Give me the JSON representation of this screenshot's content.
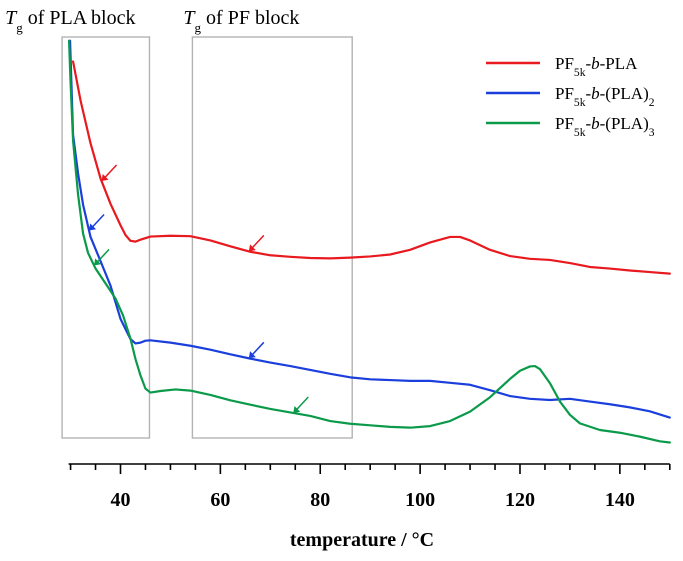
{
  "chart_data": {
    "type": "line",
    "title": "",
    "xlabel": "temperature / °C",
    "ylabel": "",
    "xlim": [
      29,
      150
    ],
    "xticks": [
      40,
      60,
      80,
      100,
      120,
      140
    ],
    "xtick_labels": [
      "40",
      "60",
      "80",
      "100",
      "120",
      "140"
    ],
    "grid": false,
    "legend_position": "top-right",
    "region_labels": [
      {
        "italic": "T",
        "sub": "g",
        "text": "of PLA block"
      },
      {
        "italic": "T",
        "sub": "g",
        "text": "of PF block"
      }
    ],
    "regions_x": [
      [
        28.3,
        45.8
      ],
      [
        54.4,
        86.4
      ]
    ],
    "series": [
      {
        "name_parts": [
          {
            "text": "PF"
          },
          {
            "text": "5k",
            "sub": true
          },
          {
            "text": "-"
          },
          {
            "text": "b",
            "italic": true
          },
          {
            "text": "-PLA"
          }
        ],
        "color": "#e8191f",
        "x": [
          30.5,
          32,
          34,
          36,
          38,
          40,
          41,
          42,
          43,
          44,
          46,
          50,
          54,
          58,
          62,
          66,
          70,
          74,
          78,
          82,
          86,
          90,
          94,
          98,
          102,
          106,
          108,
          110,
          114,
          118,
          122,
          126,
          130,
          134,
          138,
          142,
          146,
          150
        ],
        "y": [
          94.5,
          84.5,
          73.5,
          64.5,
          58,
          52.5,
          50,
          48.5,
          48.3,
          48.8,
          49.6,
          49.8,
          49.7,
          48.6,
          47.1,
          45.7,
          44.8,
          44.4,
          44.1,
          44.0,
          44.2,
          44.5,
          45.0,
          46.2,
          48.1,
          49.5,
          49.5,
          48.6,
          46.2,
          44.6,
          43.9,
          43.6,
          42.8,
          41.8,
          41.4,
          40.9,
          40.5,
          40.1
        ]
      },
      {
        "name_parts": [
          {
            "text": "PF"
          },
          {
            "text": "5k",
            "sub": true
          },
          {
            "text": "-"
          },
          {
            "text": "b",
            "italic": true
          },
          {
            "text": "-(PLA)"
          },
          {
            "text": "2",
            "sub": true
          }
        ],
        "color": "#1a3fdc",
        "x": [
          29.9,
          30.5,
          31.5,
          32.5,
          34,
          36,
          38,
          40,
          42,
          43,
          44,
          45,
          46,
          50,
          54,
          58,
          62,
          66,
          70,
          74,
          78,
          82,
          86,
          90,
          94,
          98,
          102,
          106,
          110,
          114,
          118,
          122,
          126,
          130,
          134,
          138,
          142,
          146,
          150
        ],
        "y": [
          99.8,
          75.7,
          65.8,
          57.8,
          49.5,
          43.3,
          37,
          28.5,
          23.3,
          22.2,
          22.4,
          22.9,
          23.0,
          22.4,
          21.6,
          20.6,
          19.4,
          18.3,
          17.3,
          16.4,
          15.4,
          14.4,
          13.5,
          13.0,
          12.8,
          12.6,
          12.6,
          12.1,
          11.6,
          10.2,
          8.7,
          8.0,
          7.7,
          8.0,
          7.3,
          6.6,
          5.8,
          4.8,
          3.2
        ]
      },
      {
        "name_parts": [
          {
            "text": "PF"
          },
          {
            "text": "5k",
            "sub": true
          },
          {
            "text": "-"
          },
          {
            "text": "b",
            "italic": true
          },
          {
            "text": "-(PLA)"
          },
          {
            "text": "3",
            "sub": true
          }
        ],
        "color": "#0a9a4a",
        "x": [
          29.7,
          30,
          30.5,
          31.5,
          32.5,
          33.5,
          35,
          37,
          39,
          40.5,
          42,
          43,
          44,
          45,
          46,
          48,
          51,
          54,
          58,
          62,
          66,
          70,
          74,
          78,
          82,
          86,
          90,
          94,
          98,
          102,
          106,
          110,
          114,
          118,
          120,
          122,
          123,
          124,
          126,
          128,
          130,
          132,
          136,
          140,
          144,
          148,
          150
        ],
        "y": [
          99.8,
          89.1,
          74.2,
          60.4,
          50.4,
          45.4,
          41.4,
          37.6,
          33.7,
          29.4,
          23.4,
          18.2,
          14.0,
          10.6,
          9.6,
          10.0,
          10.4,
          10.1,
          9.0,
          7.6,
          6.5,
          5.4,
          4.5,
          3.6,
          2.3,
          1.6,
          1.2,
          0.8,
          0.6,
          1.0,
          2.3,
          4.7,
          8.4,
          13.1,
          15.2,
          16.3,
          16.4,
          15.6,
          12.0,
          7.3,
          3.9,
          1.7,
          0.0,
          -0.7,
          -1.7,
          -2.9,
          -3.2
        ]
      }
    ],
    "markers": [
      {
        "series": 0,
        "x": 36.2
      },
      {
        "series": 1,
        "x": 33.7
      },
      {
        "series": 2,
        "x": 34.7
      },
      {
        "series": 0,
        "x": 65.7
      },
      {
        "series": 1,
        "x": 65.7
      },
      {
        "series": 2,
        "x": 74.6
      }
    ]
  }
}
